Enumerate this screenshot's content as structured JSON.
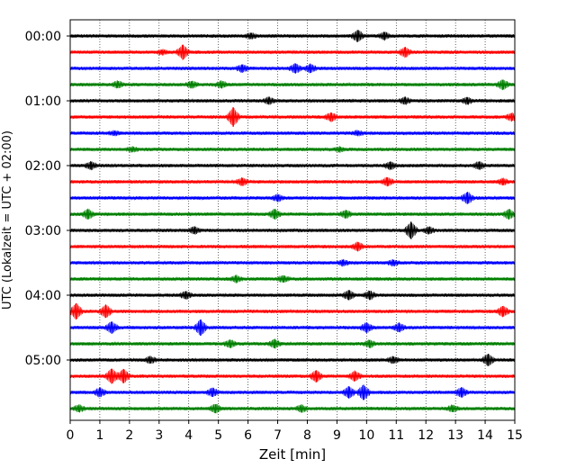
{
  "chart_data": {
    "type": "line",
    "xlabel": "Zeit  [min]",
    "ylabel": "UTC (Lokalzeit = UTC + 02:00)",
    "xlim": [
      0,
      15
    ],
    "x_ticks": [
      0,
      1,
      2,
      3,
      4,
      5,
      6,
      7,
      8,
      9,
      10,
      11,
      12,
      13,
      14,
      15
    ],
    "y_ticks": [
      "00:00",
      "01:00",
      "02:00",
      "03:00",
      "04:00",
      "05:00"
    ],
    "grid": "vertical dotted",
    "row_minutes": 15,
    "trace_colors": [
      "#000000",
      "#ff0000",
      "#0000ff",
      "#008000"
    ],
    "rows": [
      {
        "start": "00:00",
        "color": "#000000",
        "events": [
          [
            9.7,
            0.55
          ],
          [
            10.6,
            0.35
          ],
          [
            6.1,
            0.25
          ]
        ]
      },
      {
        "start": "00:15",
        "color": "#ff0000",
        "events": [
          [
            3.8,
            0.7
          ],
          [
            11.3,
            0.45
          ],
          [
            3.1,
            0.2
          ]
        ]
      },
      {
        "start": "00:30",
        "color": "#0000ff",
        "events": [
          [
            7.6,
            0.45
          ],
          [
            8.1,
            0.4
          ],
          [
            5.8,
            0.35
          ]
        ]
      },
      {
        "start": "00:45",
        "color": "#008000",
        "events": [
          [
            1.6,
            0.3
          ],
          [
            4.1,
            0.3
          ],
          [
            5.1,
            0.3
          ],
          [
            14.6,
            0.45
          ]
        ]
      },
      {
        "start": "01:00",
        "color": "#000000",
        "events": [
          [
            6.7,
            0.3
          ],
          [
            11.3,
            0.3
          ],
          [
            13.4,
            0.3
          ]
        ]
      },
      {
        "start": "01:15",
        "color": "#ff0000",
        "events": [
          [
            5.5,
            0.9
          ],
          [
            8.8,
            0.4
          ],
          [
            14.9,
            0.35
          ]
        ]
      },
      {
        "start": "01:30",
        "color": "#0000ff",
        "events": [
          [
            1.5,
            0.2
          ],
          [
            9.7,
            0.2
          ]
        ]
      },
      {
        "start": "01:45",
        "color": "#008000",
        "events": [
          [
            2.1,
            0.2
          ],
          [
            9.1,
            0.2
          ]
        ]
      },
      {
        "start": "02:00",
        "color": "#000000",
        "events": [
          [
            0.7,
            0.35
          ],
          [
            10.8,
            0.35
          ],
          [
            13.8,
            0.35
          ]
        ]
      },
      {
        "start": "02:15",
        "color": "#ff0000",
        "events": [
          [
            5.8,
            0.35
          ],
          [
            10.7,
            0.4
          ],
          [
            14.6,
            0.3
          ]
        ]
      },
      {
        "start": "02:30",
        "color": "#0000ff",
        "events": [
          [
            7.0,
            0.3
          ],
          [
            13.4,
            0.55
          ]
        ]
      },
      {
        "start": "02:45",
        "color": "#008000",
        "events": [
          [
            0.6,
            0.45
          ],
          [
            6.9,
            0.45
          ],
          [
            9.3,
            0.35
          ],
          [
            14.8,
            0.45
          ]
        ]
      },
      {
        "start": "03:00",
        "color": "#000000",
        "events": [
          [
            4.2,
            0.3
          ],
          [
            11.5,
            0.8
          ],
          [
            12.1,
            0.3
          ]
        ]
      },
      {
        "start": "03:15",
        "color": "#ff0000",
        "events": [
          [
            9.7,
            0.4
          ]
        ]
      },
      {
        "start": "03:30",
        "color": "#0000ff",
        "events": [
          [
            9.2,
            0.25
          ],
          [
            10.9,
            0.25
          ]
        ]
      },
      {
        "start": "03:45",
        "color": "#008000",
        "events": [
          [
            5.6,
            0.3
          ],
          [
            7.2,
            0.3
          ]
        ]
      },
      {
        "start": "04:00",
        "color": "#000000",
        "events": [
          [
            3.9,
            0.35
          ],
          [
            9.4,
            0.45
          ],
          [
            10.1,
            0.4
          ]
        ]
      },
      {
        "start": "04:15",
        "color": "#ff0000",
        "events": [
          [
            0.2,
            0.75
          ],
          [
            1.2,
            0.6
          ],
          [
            14.6,
            0.5
          ]
        ]
      },
      {
        "start": "04:30",
        "color": "#0000ff",
        "events": [
          [
            1.4,
            0.55
          ],
          [
            4.4,
            0.75
          ],
          [
            10.0,
            0.45
          ],
          [
            11.1,
            0.4
          ]
        ]
      },
      {
        "start": "04:45",
        "color": "#008000",
        "events": [
          [
            5.4,
            0.35
          ],
          [
            6.9,
            0.4
          ],
          [
            10.1,
            0.35
          ]
        ]
      },
      {
        "start": "05:00",
        "color": "#000000",
        "events": [
          [
            2.7,
            0.3
          ],
          [
            10.9,
            0.3
          ],
          [
            14.1,
            0.55
          ]
        ]
      },
      {
        "start": "05:15",
        "color": "#ff0000",
        "events": [
          [
            1.4,
            0.7
          ],
          [
            1.8,
            0.65
          ],
          [
            8.3,
            0.55
          ],
          [
            9.6,
            0.45
          ]
        ]
      },
      {
        "start": "05:30",
        "color": "#0000ff",
        "events": [
          [
            1.0,
            0.4
          ],
          [
            4.8,
            0.4
          ],
          [
            9.4,
            0.55
          ],
          [
            9.9,
            0.7
          ],
          [
            13.2,
            0.45
          ]
        ]
      },
      {
        "start": "05:45",
        "color": "#008000",
        "events": [
          [
            0.3,
            0.3
          ],
          [
            4.9,
            0.4
          ],
          [
            7.8,
            0.3
          ],
          [
            12.9,
            0.3
          ]
        ]
      }
    ]
  }
}
